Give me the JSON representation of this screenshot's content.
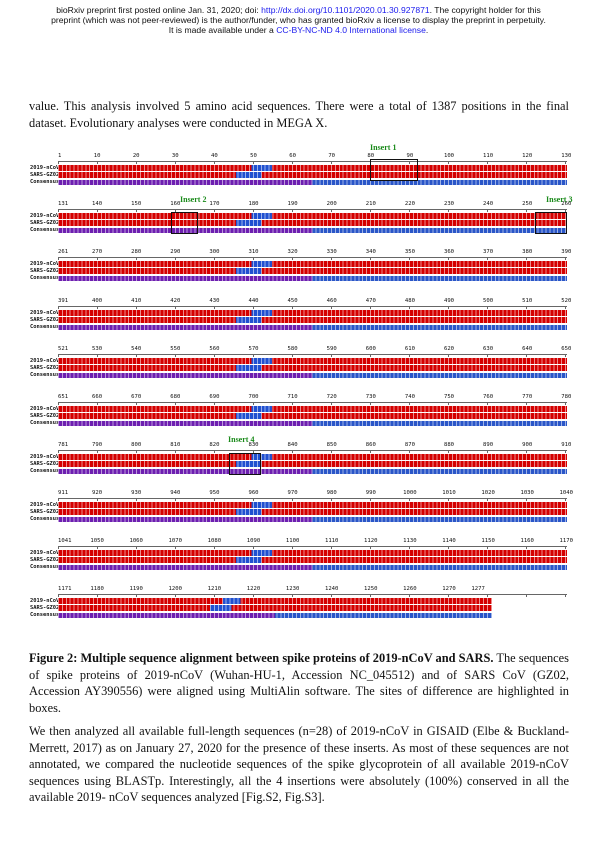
{
  "notice": {
    "line1_prefix": "bioRxiv preprint first posted online Jan. 31, 2020; doi: ",
    "line1_link": "http://dx.doi.org/10.1101/2020.01.30.927871",
    "line1_suffix": ". The copyright holder for this",
    "line2": "preprint (which was not peer-reviewed) is the author/funder, who has granted bioRxiv a license to display the preprint in perpetuity.",
    "line3_prefix": "It is made available under a ",
    "line3_link": "CC-BY-NC-ND 4.0 International license",
    "line3_suffix": "."
  },
  "paragraph_top": "value. This analysis involved 5 amino acid sequences. There were a total of 1387 positions in the final dataset. Evolutionary analyses were conducted in MEGA X.",
  "figure": {
    "sequence_names": [
      "2019-nCoV",
      "SARS-GZ02",
      "Consensus"
    ],
    "blocks": [
      {
        "positions": [
          "1",
          "10",
          "20",
          "30",
          "40",
          "50",
          "60",
          "70",
          "80",
          "90",
          "100",
          "110",
          "120",
          "130"
        ]
      },
      {
        "positions": [
          "131",
          "140",
          "150",
          "160",
          "170",
          "180",
          "190",
          "200",
          "210",
          "220",
          "230",
          "240",
          "250",
          "260"
        ]
      },
      {
        "positions": [
          "261",
          "270",
          "280",
          "290",
          "300",
          "310",
          "320",
          "330",
          "340",
          "350",
          "360",
          "370",
          "380",
          "390"
        ]
      },
      {
        "positions": [
          "391",
          "400",
          "410",
          "420",
          "430",
          "440",
          "450",
          "460",
          "470",
          "480",
          "490",
          "500",
          "510",
          "520"
        ]
      },
      {
        "positions": [
          "521",
          "530",
          "540",
          "550",
          "560",
          "570",
          "580",
          "590",
          "600",
          "610",
          "620",
          "630",
          "640",
          "650"
        ]
      },
      {
        "positions": [
          "651",
          "660",
          "670",
          "680",
          "690",
          "700",
          "710",
          "720",
          "730",
          "740",
          "750",
          "760",
          "770",
          "780"
        ]
      },
      {
        "positions": [
          "781",
          "790",
          "800",
          "810",
          "820",
          "830",
          "840",
          "850",
          "860",
          "870",
          "880",
          "890",
          "900",
          "910"
        ]
      },
      {
        "positions": [
          "911",
          "920",
          "930",
          "940",
          "950",
          "960",
          "970",
          "980",
          "990",
          "1000",
          "1010",
          "1020",
          "1030",
          "1040"
        ]
      },
      {
        "positions": [
          "1041",
          "1050",
          "1060",
          "1070",
          "1080",
          "1090",
          "1100",
          "1110",
          "1120",
          "1130",
          "1140",
          "1150",
          "1160",
          "1170"
        ]
      },
      {
        "positions": [
          "1171",
          "1180",
          "1190",
          "1200",
          "1210",
          "1220",
          "1230",
          "1240",
          "1250",
          "1260",
          "1270",
          "1277"
        ]
      }
    ],
    "inserts": [
      "Insert 1",
      "Insert 2",
      "Insert 3",
      "Insert 4"
    ],
    "colors": {
      "conserved": "#d40000",
      "variable": "#2050d0",
      "consensus": "#6d1fb0",
      "insert_label": "#1a8a1a"
    }
  },
  "caption": {
    "label": "Figure 2: Multiple sequence alignment between spike proteins of 2019-nCoV and SARS.",
    "text": " The sequences of spike proteins of 2019-nCoV (Wuhan-HU-1, Accession NC_045512) and of SARS CoV (GZ02, Accession AY390556) were aligned using MultiAlin software. The sites of difference are highlighted in  boxes."
  },
  "paragraph_bottom": "We then analyzed all available full-length sequences (n=28) of 2019-nCoV in GISAID (Elbe & Buckland-Merrett, 2017) as on January 27, 2020 for the presence of these inserts. As most of these sequences are not annotated, we compared the nucleotide sequences of the spike glycoprotein of all available 2019-nCoV sequences using BLASTp. Interestingly, all the 4 insertions were absolutely (100%) conserved in all the available 2019- nCoV sequences analyzed [Fig.S2, Fig.S3]."
}
